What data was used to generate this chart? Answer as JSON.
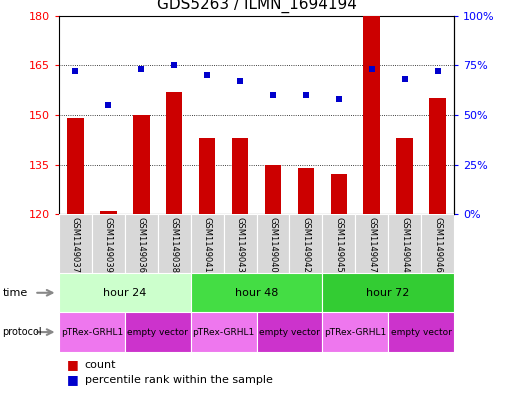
{
  "title": "GDS5263 / ILMN_1694194",
  "samples": [
    "GSM1149037",
    "GSM1149039",
    "GSM1149036",
    "GSM1149038",
    "GSM1149041",
    "GSM1149043",
    "GSM1149040",
    "GSM1149042",
    "GSM1149045",
    "GSM1149047",
    "GSM1149044",
    "GSM1149046"
  ],
  "bar_values": [
    149,
    121,
    150,
    157,
    143,
    143,
    135,
    134,
    132,
    180,
    143,
    155
  ],
  "dot_values": [
    72,
    55,
    73,
    75,
    70,
    67,
    60,
    60,
    58,
    73,
    68,
    72
  ],
  "ylim_left": [
    120,
    180
  ],
  "ylim_right": [
    0,
    100
  ],
  "yticks_left": [
    120,
    135,
    150,
    165,
    180
  ],
  "yticks_right": [
    0,
    25,
    50,
    75,
    100
  ],
  "bar_color": "#cc0000",
  "dot_color": "#0000cc",
  "background_color": "#ffffff",
  "time_groups": [
    {
      "label": "hour 24",
      "start": 0,
      "end": 4,
      "color": "#ccffcc"
    },
    {
      "label": "hour 48",
      "start": 4,
      "end": 8,
      "color": "#44dd44"
    },
    {
      "label": "hour 72",
      "start": 8,
      "end": 12,
      "color": "#33cc33"
    }
  ],
  "protocol_colors": [
    "#ee77ee",
    "#cc33cc"
  ],
  "protocol_groups": [
    {
      "label": "pTRex-GRHL1",
      "start": 0,
      "end": 2
    },
    {
      "label": "empty vector",
      "start": 2,
      "end": 4
    },
    {
      "label": "pTRex-GRHL1",
      "start": 4,
      "end": 6
    },
    {
      "label": "empty vector",
      "start": 6,
      "end": 8
    },
    {
      "label": "pTRex-GRHL1",
      "start": 8,
      "end": 10
    },
    {
      "label": "empty vector",
      "start": 10,
      "end": 12
    }
  ],
  "legend_items": [
    {
      "label": "count",
      "color": "#cc0000"
    },
    {
      "label": "percentile rank within the sample",
      "color": "#0000cc"
    }
  ],
  "title_fontsize": 11,
  "tick_fontsize": 8,
  "sample_fontsize": 6,
  "row_fontsize": 8,
  "proto_fontsize": 6.5,
  "legend_fontsize": 8
}
